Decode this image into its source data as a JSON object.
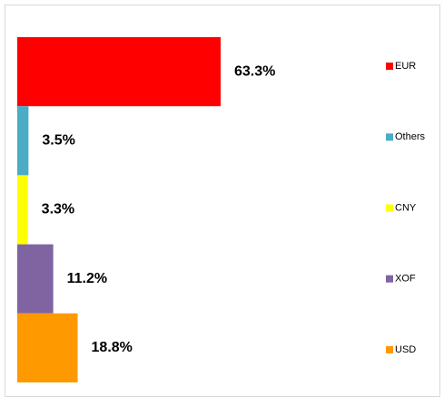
{
  "chart_data": {
    "type": "bar",
    "orientation": "horizontal",
    "categories": [
      "EUR",
      "Others",
      "CNY",
      "XOF",
      "USD"
    ],
    "values": [
      63.3,
      3.5,
      3.3,
      11.2,
      18.8
    ],
    "value_labels": [
      "63.3%",
      "3.5%",
      "3.3%",
      "11.2%",
      "18.8%"
    ],
    "colors": [
      "#ff0000",
      "#4bacc6",
      "#ffff00",
      "#8064a2",
      "#ff9900"
    ],
    "legend": "right"
  }
}
